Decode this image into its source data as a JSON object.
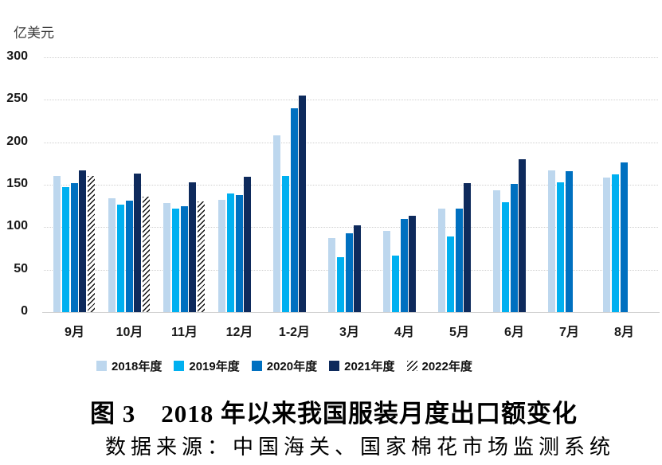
{
  "unit_label": "亿美元",
  "caption": {
    "title": "图 3　2018 年以来我国服装月度出口额变化",
    "source": "数据来源：中国海关、国家棉花市场监测系统"
  },
  "chart_data": {
    "type": "bar",
    "title": "图 3　2018 年以来我国服装月度出口额变化",
    "source_note": "数据来源：中国海关、国家棉花市场监测系统",
    "ylabel": "亿美元",
    "xlabel": "",
    "ylim": [
      0,
      300
    ],
    "yticks": [
      0,
      50,
      100,
      150,
      200,
      250,
      300
    ],
    "grid": "horizontal-dotted",
    "legend_position": "bottom",
    "categories": [
      "9月",
      "10月",
      "11月",
      "12月",
      "1-2月",
      "3月",
      "4月",
      "5月",
      "6月",
      "7月",
      "8月"
    ],
    "series": [
      {
        "name": "2018年度",
        "color": "#BDD7EE",
        "hatch": false,
        "values": [
          160,
          134,
          128,
          132,
          208,
          87,
          96,
          122,
          143,
          167,
          158
        ]
      },
      {
        "name": "2019年度",
        "color": "#00B0F0",
        "hatch": false,
        "values": [
          147,
          127,
          122,
          140,
          160,
          65,
          67,
          89,
          129,
          153,
          162
        ]
      },
      {
        "name": "2020年度",
        "color": "#0070C0",
        "hatch": false,
        "values": [
          152,
          131,
          125,
          138,
          240,
          93,
          110,
          122,
          151,
          166,
          176
        ]
      },
      {
        "name": "2021年度",
        "color": "#0E2A5C",
        "hatch": false,
        "values": [
          167,
          163,
          153,
          159,
          255,
          102,
          113,
          152,
          180,
          null,
          null
        ]
      },
      {
        "name": "2022年度",
        "color": "#101010",
        "hatch": true,
        "values": [
          160,
          136,
          130,
          null,
          null,
          null,
          null,
          null,
          null,
          null,
          null
        ]
      }
    ]
  },
  "colors": {
    "gridline": "#cfcfcf",
    "baseline": "#d2d2d2",
    "axis_text": "#1a1a1a"
  }
}
